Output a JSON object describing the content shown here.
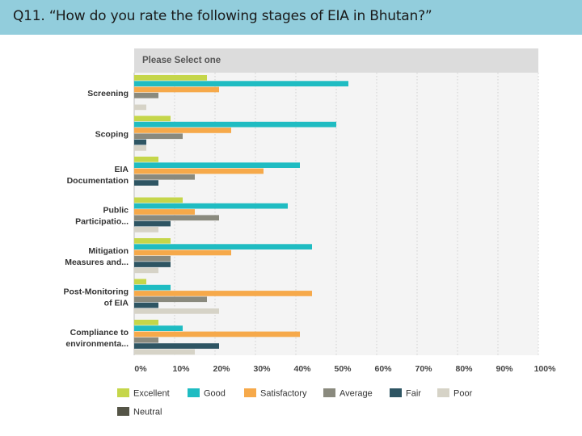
{
  "title": "Q11. “How do you rate the following stages of EIA in Bhutan?”",
  "chart_data": {
    "type": "bar",
    "orientation": "horizontal",
    "header": "Please Select one",
    "categories": [
      [
        "Screening"
      ],
      [
        "Scoping"
      ],
      [
        "EIA",
        "Documentation"
      ],
      [
        "Public",
        "Participatio..."
      ],
      [
        "Mitigation",
        "Measures and..."
      ],
      [
        "Post-Monitoring",
        "of EIA"
      ],
      [
        "Compliance to",
        "environmenta..."
      ]
    ],
    "xlim": [
      0,
      100
    ],
    "x_ticks": [
      "0%",
      "10%",
      "20%",
      "30%",
      "40%",
      "50%",
      "60%",
      "70%",
      "80%",
      "90%",
      "100%"
    ],
    "grid": true,
    "legend_position": "bottom",
    "series": [
      {
        "name": "Excellent",
        "color": "#c5d64a",
        "values": [
          18,
          9,
          6,
          12,
          9,
          3,
          6
        ]
      },
      {
        "name": "Good",
        "color": "#1fbcc2",
        "values": [
          53,
          50,
          41,
          38,
          44,
          9,
          12
        ]
      },
      {
        "name": "Satisfactory",
        "color": "#f6a94a",
        "values": [
          21,
          24,
          32,
          15,
          24,
          44,
          41
        ]
      },
      {
        "name": "Average",
        "color": "#8a8a7e",
        "values": [
          6,
          12,
          15,
          21,
          9,
          18,
          6
        ]
      },
      {
        "name": "Fair",
        "color": "#2e5563",
        "values": [
          0,
          3,
          6,
          9,
          9,
          6,
          21
        ]
      },
      {
        "name": "Poor",
        "color": "#d6d3c7",
        "values": [
          3,
          3,
          0,
          6,
          6,
          21,
          15
        ]
      },
      {
        "name": "Neutral",
        "color": "#555547",
        "values": [
          0,
          0,
          0,
          0,
          0,
          0,
          0
        ]
      }
    ]
  }
}
